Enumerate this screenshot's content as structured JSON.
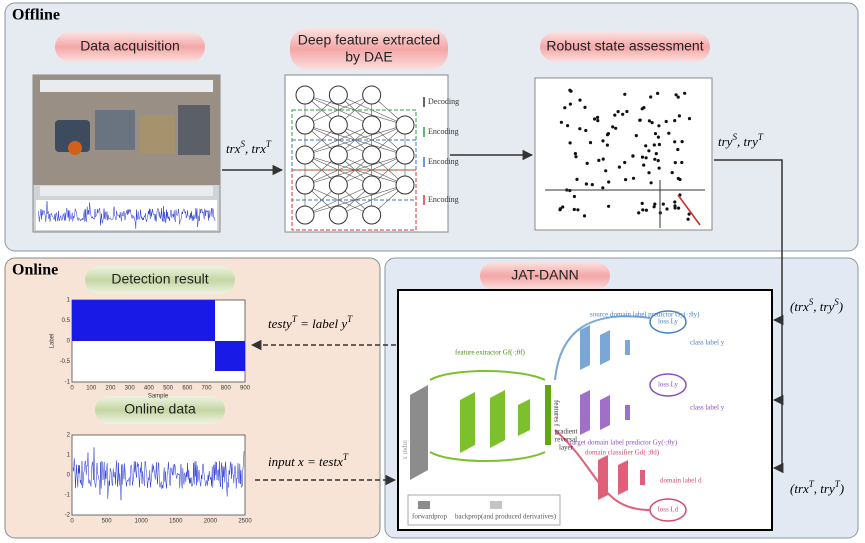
{
  "offline": {
    "title": "Offline",
    "steps": [
      "Data acquisition",
      "Deep feature extracted",
      "by DAE",
      "Robust state assessment"
    ],
    "dae_labels": [
      "Decoding",
      "Encoding",
      "Encoding",
      "Encoding"
    ],
    "arrow_in": [
      {
        "t": "trx"
      },
      {
        "sup": "S"
      },
      {
        "t": ", trx"
      },
      {
        "sup": "T"
      }
    ],
    "arrow_out": [
      {
        "t": "try"
      },
      {
        "sup": "S"
      },
      {
        "t": ", try"
      },
      {
        "sup": "T"
      }
    ]
  },
  "online": {
    "title": "Online",
    "detection_title": "Detection result",
    "data_title": "Online data",
    "detection_plot": {
      "x_label": "Sample",
      "y_label": "Label",
      "xticks": [
        "0",
        "100",
        "200",
        "300",
        "400",
        "500",
        "600",
        "700",
        "800",
        "900"
      ],
      "yticks": [
        "1",
        "0.5",
        "0",
        "-0.5",
        "-1"
      ]
    },
    "data_plot": {
      "xticks": [
        "0",
        "500",
        "1000",
        "1500",
        "2000",
        "2500"
      ],
      "yticks": [
        "2",
        "1",
        "0",
        "-1",
        "-2"
      ]
    }
  },
  "jat_dann": {
    "title": "JAT-DANN",
    "output": [
      {
        "t": "testy"
      },
      {
        "sup": "T"
      },
      {
        "t": " = label y"
      },
      {
        "sup": "T"
      }
    ],
    "input": [
      {
        "t": "input x = testx"
      },
      {
        "sup": "T"
      }
    ],
    "source_input": [
      {
        "t": "(trx"
      },
      {
        "sup": "S"
      },
      {
        "t": ", try"
      },
      {
        "sup": "S"
      },
      {
        "t": ")"
      }
    ],
    "target_input": [
      {
        "t": "(trx"
      },
      {
        "sup": "T"
      },
      {
        "t": ", try"
      },
      {
        "sup": "T"
      },
      {
        "t": ")"
      }
    ],
    "figure": {
      "feature_extractor": "feature extractor Gf(·;θf)",
      "source_predictor": "source domain label predictor Gy(·;θy)",
      "target_predictor": "target domain label predictor Gy(·;θy)",
      "domain_classifier": "domain classifier Gd(·;θd)",
      "class_label_source": "class label y",
      "class_label_target": "class label y",
      "domain_label": "domain label d",
      "loss_source": "loss Ly",
      "loss_target": "loss Ly",
      "loss_domain": "loss Ld",
      "gradient_reversal": [
        "gradient",
        "reversal",
        "layer"
      ],
      "features": "features f",
      "input": "input x",
      "forwardprop": "forwardprop",
      "backprop": "backprop(and produced derivatives)"
    }
  }
}
